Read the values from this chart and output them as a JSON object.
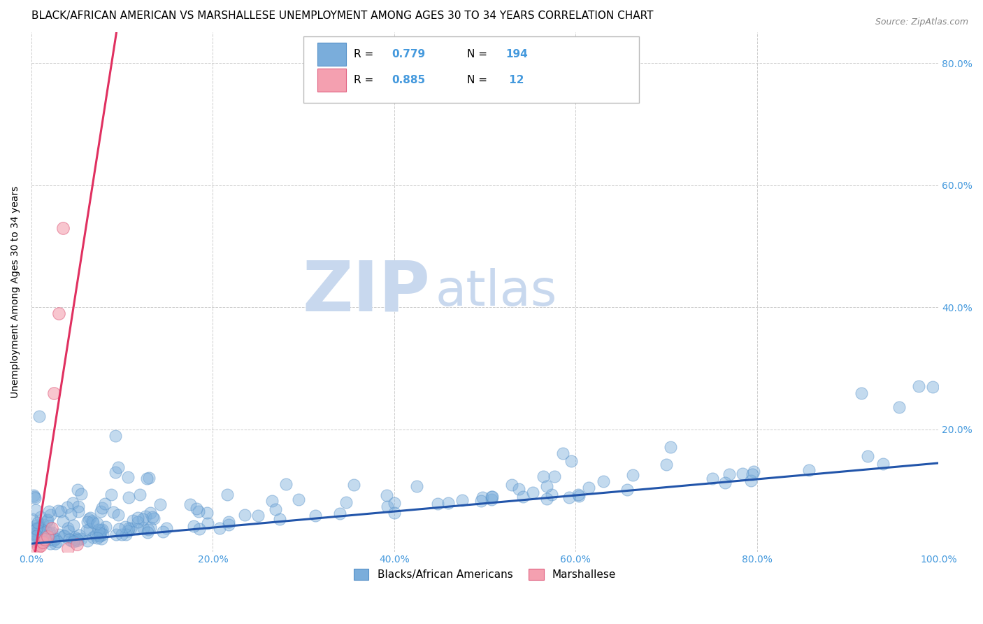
{
  "title": "BLACK/AFRICAN AMERICAN VS MARSHALLESE UNEMPLOYMENT AMONG AGES 30 TO 34 YEARS CORRELATION CHART",
  "source": "Source: ZipAtlas.com",
  "ylabel": "Unemployment Among Ages 30 to 34 years",
  "xlim": [
    0.0,
    1.0
  ],
  "ylim": [
    0.0,
    0.85
  ],
  "blue_R": "0.779",
  "blue_N": "194",
  "pink_R": "0.885",
  "pink_N": "12",
  "blue_color": "#7aaddb",
  "blue_edge_color": "#5590c8",
  "pink_color": "#f4a0b0",
  "pink_edge_color": "#e06080",
  "blue_line_color": "#2255aa",
  "pink_line_color": "#e03060",
  "tick_color": "#4499dd",
  "watermark_zip_color": "#c8d8ee",
  "watermark_atlas_color": "#c8d8ee",
  "legend_labels": [
    "Blacks/African Americans",
    "Marshallese"
  ],
  "background_color": "#ffffff",
  "grid_color": "#cccccc",
  "title_fontsize": 11,
  "tick_fontsize": 10,
  "source_fontsize": 9
}
